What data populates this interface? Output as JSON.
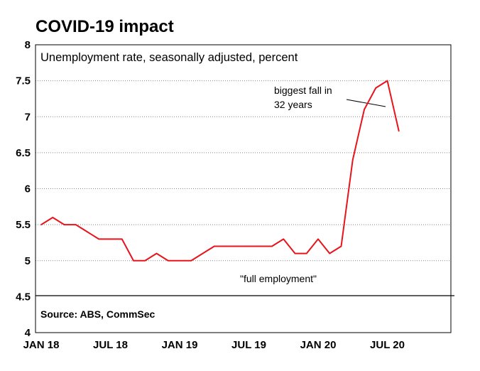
{
  "chart_data": {
    "type": "line",
    "title": "COVID-19 impact",
    "subtitle": "Unemployment rate, seasonally adjusted, percent",
    "xlabel": "",
    "ylabel": "",
    "source": "Source: ABS, CommSec",
    "ylim": [
      4,
      8
    ],
    "y_ticks": [
      "4",
      "4.5",
      "5",
      "5.5",
      "6",
      "6.5",
      "7",
      "7.5",
      "8"
    ],
    "x_ticks": [
      "JAN 18",
      "JUL 18",
      "JAN 19",
      "JUL 19",
      "JAN 20",
      "JUL 20"
    ],
    "grid": "horizontal dotted",
    "annotations": [
      "biggest fall in",
      "32 years",
      "\"full employment\""
    ],
    "x": [
      "2018-01",
      "2018-02",
      "2018-03",
      "2018-04",
      "2018-05",
      "2018-06",
      "2018-07",
      "2018-08",
      "2018-09",
      "2018-10",
      "2018-11",
      "2018-12",
      "2019-01",
      "2019-02",
      "2019-03",
      "2019-04",
      "2019-05",
      "2019-06",
      "2019-07",
      "2019-08",
      "2019-09",
      "2019-10",
      "2019-11",
      "2019-12",
      "2020-01",
      "2020-02",
      "2020-03",
      "2020-04",
      "2020-05",
      "2020-06",
      "2020-07",
      "2020-08"
    ],
    "series": [
      {
        "values": [
          5.5,
          5.6,
          5.5,
          5.5,
          5.4,
          5.3,
          5.3,
          5.3,
          5.0,
          5.0,
          5.1,
          5.0,
          5.0,
          5.0,
          5.1,
          5.2,
          5.2,
          5.2,
          5.2,
          5.2,
          5.2,
          5.3,
          5.1,
          5.1,
          5.3,
          5.1,
          5.2,
          6.4,
          7.1,
          7.4,
          7.5,
          6.8
        ],
        "color": "#e8141b"
      }
    ]
  }
}
